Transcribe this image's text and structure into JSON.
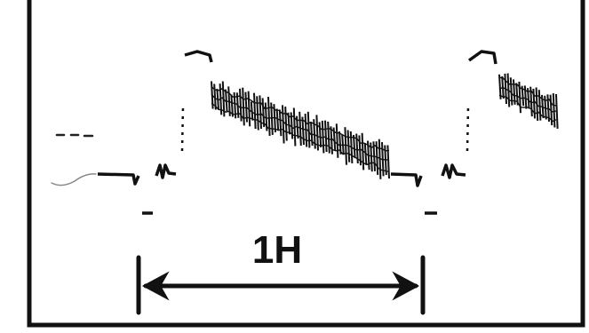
{
  "diagram": {
    "period_label": "1H",
    "colors": {
      "ink": "#111111",
      "background": "#ffffff",
      "frame": "#111111"
    }
  }
}
